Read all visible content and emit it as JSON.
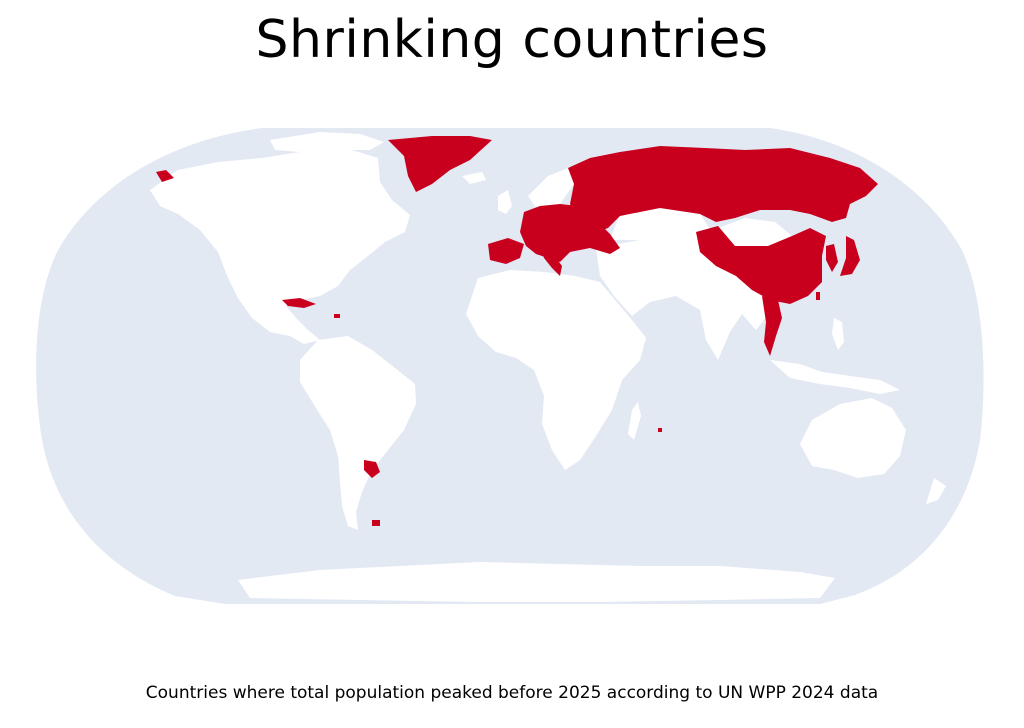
{
  "title": "Shrinking countries",
  "caption": "Countries where total population peaked before 2025 according to UN WPP 2024 data",
  "map": {
    "projection": "robinson",
    "colors": {
      "ocean": "#e3e9f3",
      "land": "#ffffff",
      "highlight": "#c8001e"
    },
    "highlighted_regions": [
      "Russia",
      "Greenland",
      "China",
      "Japan",
      "North Korea",
      "South Korea",
      "Thailand",
      "Cuba",
      "Uruguay",
      "Spain",
      "Portugal",
      "Italy",
      "Eastern Europe",
      "Baltic states",
      "Balkans",
      "Alaska",
      "Falkland Islands",
      "Taiwan",
      "Mauritius",
      "Puerto Rico",
      "Caribbean islands"
    ]
  }
}
